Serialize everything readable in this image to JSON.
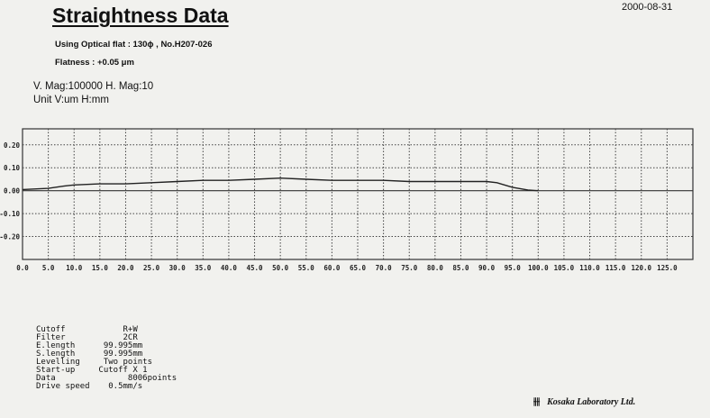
{
  "header": {
    "title": "Straightness Data",
    "date": "2000-08-31",
    "optical_flat": "Using Optical flat : 130ϕ , No.H207-026",
    "flatness": "Flatness : +0.05 μm",
    "magnification": "V. Mag:100000  H. Mag:10",
    "units": "Unit  V:um  H:mm"
  },
  "chart_data": {
    "type": "line",
    "title": "",
    "xlabel": "",
    "ylabel": "",
    "xlim": [
      0,
      130
    ],
    "ylim": [
      -0.3,
      0.27
    ],
    "grid": true,
    "x_ticks": [
      "0.0",
      "5.0",
      "10.0",
      "15.0",
      "20.0",
      "25.0",
      "30.0",
      "35.0",
      "40.0",
      "45.0",
      "50.0",
      "55.0",
      "60.0",
      "65.0",
      "70.0",
      "75.0",
      "80.0",
      "85.0",
      "90.0",
      "95.0",
      "100.0",
      "105.0",
      "110.0",
      "115.0",
      "120.0",
      "125.0"
    ],
    "y_ticks": [
      "0.20",
      "0.10",
      "0.00",
      "-0.10",
      "-0.20"
    ],
    "series": [
      {
        "x": [
          0,
          5,
          8,
          10,
          15,
          20,
          25,
          30,
          35,
          40,
          45,
          50,
          55,
          60,
          65,
          70,
          75,
          80,
          85,
          90,
          92,
          95,
          98,
          100
        ],
        "y": [
          0.005,
          0.01,
          0.02,
          0.025,
          0.03,
          0.03,
          0.035,
          0.04,
          0.045,
          0.045,
          0.05,
          0.055,
          0.05,
          0.045,
          0.045,
          0.045,
          0.04,
          0.04,
          0.04,
          0.04,
          0.035,
          0.015,
          0.003,
          0.0
        ]
      }
    ],
    "line_color": "#222222"
  },
  "params": [
    {
      "key": "Cutoff",
      "value": "      R+W"
    },
    {
      "key": "Filter",
      "value": "      2CR"
    },
    {
      "key": "E.length",
      "value": "  99.995mm"
    },
    {
      "key": "S.length",
      "value": "  99.995mm"
    },
    {
      "key": "Levelling",
      "value": "  Two points"
    },
    {
      "key": "Start-up",
      "value": " Cutoff X 1"
    },
    {
      "key": "Data",
      "value": "       8006points"
    },
    {
      "key": "Drive speed",
      "value": "   0.5mm/s"
    }
  ],
  "footer": {
    "company": "Kosaka Laboratory Ltd."
  }
}
